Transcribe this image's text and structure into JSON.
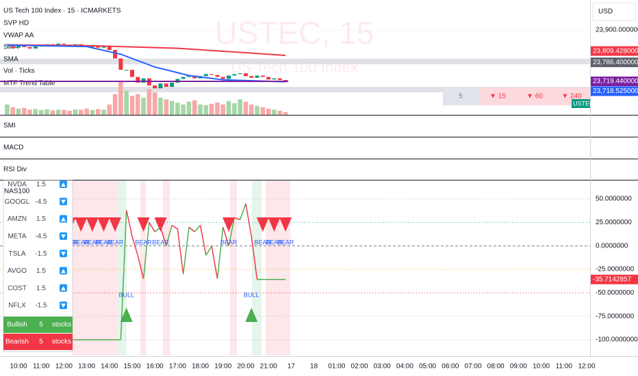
{
  "header": {
    "symbol": "US Tech 100 Index · 15 · ICMARKETS",
    "indicators": [
      "SVP HD",
      "VWAP AA",
      "SMA",
      "SMA",
      "Vol · Ticks",
      "MTF Trend Table"
    ],
    "currency": "USD",
    "watermark": "USTEC, 15",
    "watermark_sub": "US Tech 100 Index"
  },
  "mtf_table": [
    "5",
    "▼ 15",
    "▼ 60",
    "▼ 240"
  ],
  "panes": [
    "SMI",
    "MACD",
    "RSI Div"
  ],
  "time_axis": [
    "10:00",
    "11:00",
    "12:00",
    "13:00",
    "14:00",
    "15:00",
    "16:00",
    "17:00",
    "18:00",
    "19:00",
    "20:00",
    "21:00",
    "17",
    "18",
    "01:00",
    "02:00",
    "03:00",
    "04:00",
    "05:00",
    "06:00",
    "07:00",
    "08:00",
    "09:00",
    "10:00",
    "11:00",
    "12:00"
  ],
  "chart_data": [
    {
      "type": "candlestick",
      "symbol_tag": "USTEC",
      "closes": [
        23843,
        23838,
        23846,
        23840,
        23835,
        23842,
        23848,
        23850,
        23845,
        23852,
        23849,
        23846,
        23850,
        23844,
        23840,
        23845,
        23838,
        23842,
        23830,
        23800,
        23760,
        23760,
        23735,
        23715,
        23730,
        23705,
        23695,
        23712,
        23700,
        23715,
        23728,
        23735,
        23740,
        23730,
        23738,
        23745,
        23742,
        23735,
        23728,
        23740,
        23745,
        23748,
        23738,
        23732,
        23740,
        23735,
        23726,
        23730,
        23724,
        23719
      ],
      "volumes": [
        30,
        22,
        18,
        20,
        15,
        17,
        14,
        16,
        13,
        15,
        14,
        12,
        16,
        15,
        18,
        14,
        17,
        15,
        30,
        60,
        95,
        70,
        55,
        60,
        50,
        75,
        65,
        50,
        45,
        40,
        35,
        30,
        38,
        42,
        30,
        28,
        32,
        36,
        30,
        40,
        34,
        45,
        38,
        30,
        26,
        22,
        18,
        15,
        12,
        8
      ],
      "ylim": [
        23601.5,
        24005.9
      ],
      "yticks": [
        {
          "value": 23900,
          "label": "23,900.0000000"
        }
      ],
      "lines": [
        {
          "color": "#f23645",
          "x": [
            0,
            15,
            30,
            49
          ],
          "values": [
            23848,
            23845,
            23836,
            23811
          ]
        },
        {
          "color": "#2962ff",
          "x": [
            0,
            14,
            20,
            26,
            32,
            38,
            49
          ],
          "values": [
            23847,
            23842,
            23815,
            23770,
            23740,
            23725,
            23718
          ]
        }
      ],
      "price_tags": [
        {
          "value": 23809.428,
          "label": "23,809.4280000",
          "color": "#f23645"
        },
        {
          "value": 23786.4,
          "label": "23,786.4000000",
          "color": "#5d606b"
        },
        {
          "value": 23719.44,
          "label": "23,719.4400000",
          "color": "#7b1fa2"
        },
        {
          "value": 23718.525,
          "label": "23,718.5250000",
          "color": "#2962ff"
        }
      ]
    },
    {
      "type": "line",
      "title": "NAS100",
      "values": [
        -100,
        -100,
        -100,
        -100,
        -100,
        -100,
        -100,
        -100,
        -100,
        -100,
        -100,
        -100,
        -100,
        -100,
        -100,
        -100,
        -100,
        -100,
        -100,
        -100,
        -100,
        38,
        10,
        -10,
        -35,
        25,
        15,
        20,
        0,
        22,
        18,
        -30,
        20,
        15,
        22,
        -10,
        0,
        -35,
        20,
        0,
        30,
        28,
        45,
        10,
        -35.7142857,
        -35.7142857,
        -35.7142857,
        -35.7142857,
        -35.7142857,
        -35.7142857
      ],
      "ylim": [
        -116.7,
        69.7
      ],
      "yticks": [
        {
          "value": 50,
          "label": "50.0000000"
        },
        {
          "value": 25,
          "label": "25.0000000"
        },
        {
          "value": 0,
          "label": "0.0000000"
        },
        {
          "value": -25,
          "label": "-25.0000000"
        },
        {
          "value": -50,
          "label": "-50.0000000"
        },
        {
          "value": -75,
          "label": "-75.0000000"
        },
        {
          "value": -100,
          "label": "-100.0000000"
        }
      ],
      "last_tag": {
        "value": -35.7142857,
        "label": "-35.7142857"
      },
      "signals": [
        {
          "x": 11,
          "label": "BEAR"
        },
        {
          "x": 13,
          "label": "BEAR"
        },
        {
          "x": 15,
          "label": "BEAR"
        },
        {
          "x": 17,
          "label": "BEAR"
        },
        {
          "x": 19,
          "label": "BEAR"
        },
        {
          "x": 21,
          "label": "BULL"
        },
        {
          "x": 24,
          "label": "BEAR"
        },
        {
          "x": 27,
          "label": "BEAR"
        },
        {
          "x": 39,
          "label": "BEAR"
        },
        {
          "x": 43,
          "label": "BULL"
        },
        {
          "x": 45,
          "label": "BEAR"
        },
        {
          "x": 47,
          "label": "BEAR"
        },
        {
          "x": 49,
          "label": "BEAR"
        }
      ],
      "table": {
        "rows": [
          [
            "NVDA",
            1.5
          ],
          [
            "GOOGL",
            -4.5
          ],
          [
            "AMZN",
            1.5
          ],
          [
            "META",
            -4.5
          ],
          [
            "TSLA",
            -1.5
          ],
          [
            "AVGO",
            1.5
          ],
          [
            "COST",
            1.5
          ],
          [
            "NFLX",
            -1.5
          ]
        ],
        "summary": [
          [
            "Bullish",
            5,
            "stocks"
          ],
          [
            "Bearish",
            5,
            "stocks"
          ]
        ]
      }
    }
  ]
}
